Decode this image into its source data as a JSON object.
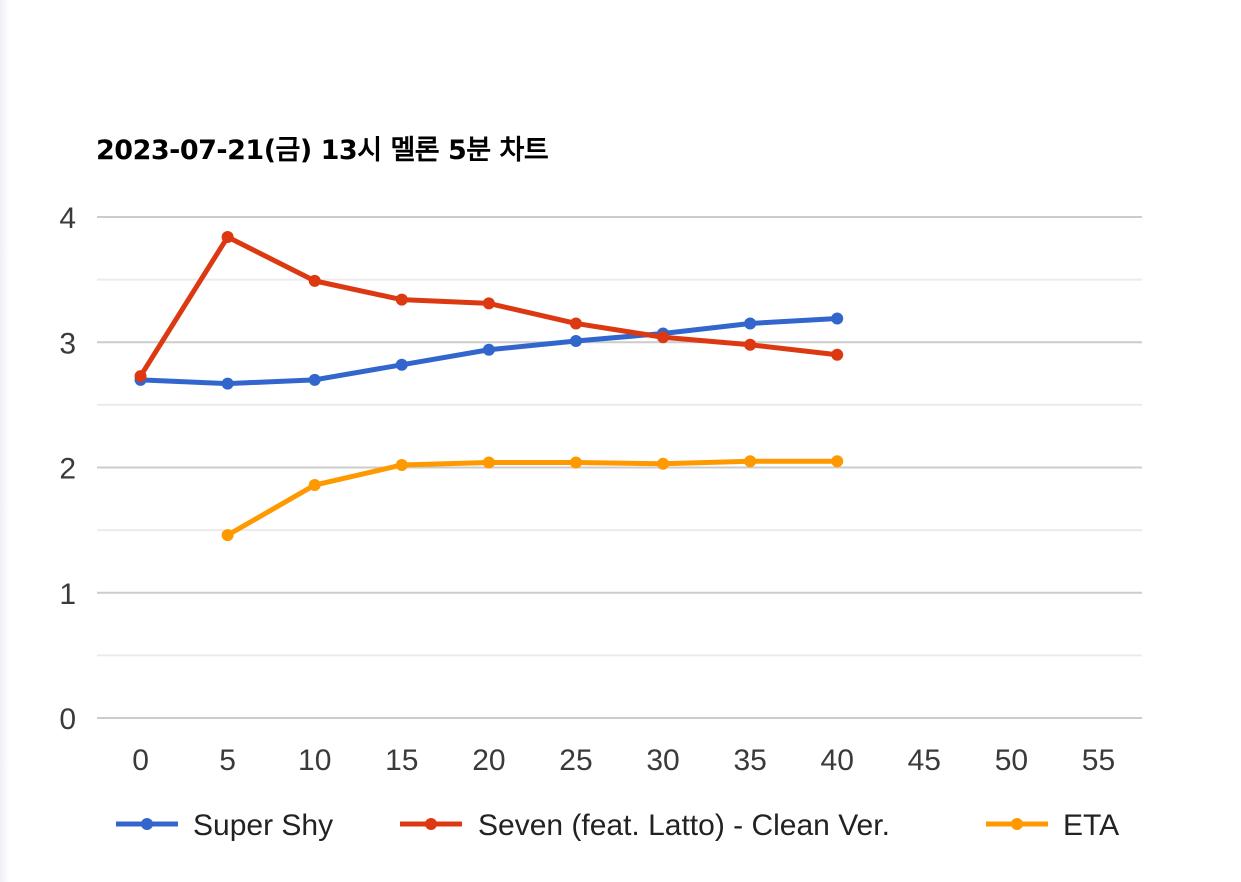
{
  "chart_data": {
    "type": "line",
    "title": "2023-07-21(금) 13시 멜론 5분 차트",
    "xlabel": "",
    "ylabel": "",
    "x_ticks": [
      0,
      5,
      10,
      15,
      20,
      25,
      30,
      35,
      40,
      45,
      50,
      55
    ],
    "y_ticks": [
      0,
      1,
      2,
      3,
      4
    ],
    "xlim": [
      -2.5,
      57.5
    ],
    "ylim": [
      0,
      4
    ],
    "grid": true,
    "legend_position": "bottom",
    "series": [
      {
        "name": "Super Shy",
        "color": "#3366cc",
        "x": [
          0,
          5,
          10,
          15,
          20,
          25,
          30,
          35,
          40
        ],
        "y": [
          2.7,
          2.67,
          2.7,
          2.82,
          2.94,
          3.01,
          3.07,
          3.15,
          3.19
        ]
      },
      {
        "name": "Seven (feat. Latto) - Clean Ver.",
        "color": "#dc3912",
        "x": [
          0,
          5,
          10,
          15,
          20,
          25,
          30,
          35,
          40
        ],
        "y": [
          2.73,
          3.84,
          3.49,
          3.34,
          3.31,
          3.15,
          3.04,
          2.98,
          2.9
        ]
      },
      {
        "name": "ETA",
        "color": "#ff9900",
        "x": [
          5,
          10,
          15,
          20,
          25,
          30,
          35,
          40
        ],
        "y": [
          1.46,
          1.86,
          2.02,
          2.04,
          2.04,
          2.03,
          2.05,
          2.05
        ]
      }
    ]
  }
}
